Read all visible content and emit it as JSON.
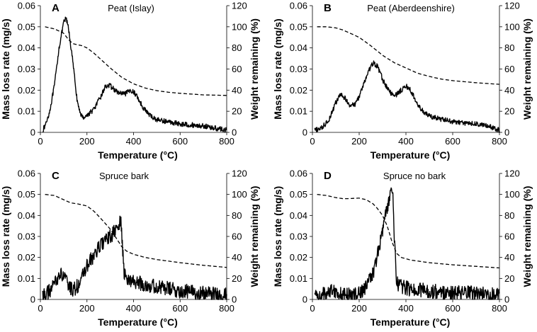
{
  "chart_data": [
    {
      "type": "line",
      "letter": "A",
      "title": "Peat (Islay)",
      "xlabel": "Temperature (°C)",
      "ylabel": "Mass loss rate (mg/s)",
      "y2label": "Weight remaining (%)",
      "xlim": [
        0,
        800
      ],
      "ylim": [
        0,
        0.06
      ],
      "y2lim": [
        0,
        120
      ],
      "xticks": [
        "0",
        "200",
        "400",
        "600",
        "800"
      ],
      "yticks": [
        "0",
        "0.01",
        "0.02",
        "0.03",
        "0.04",
        "0.05",
        "0.06"
      ],
      "y2ticks": [
        "0",
        "20",
        "40",
        "60",
        "80",
        "100",
        "120"
      ],
      "noise": 0.0012,
      "series": [
        {
          "name": "Mass loss rate",
          "axis": "left",
          "style": "solid",
          "x": [
            10,
            20,
            40,
            60,
            80,
            100,
            110,
            120,
            140,
            160,
            180,
            200,
            230,
            260,
            280,
            300,
            330,
            360,
            390,
            410,
            440,
            470,
            500,
            550,
            600,
            650,
            700,
            750,
            800
          ],
          "y": [
            0.001,
            0.003,
            0.01,
            0.022,
            0.04,
            0.052,
            0.054,
            0.05,
            0.033,
            0.013,
            0.007,
            0.008,
            0.011,
            0.017,
            0.022,
            0.022,
            0.019,
            0.018,
            0.02,
            0.018,
            0.012,
            0.008,
            0.006,
            0.005,
            0.004,
            0.0035,
            0.003,
            0.002,
            0.001
          ]
        },
        {
          "name": "Weight remaining",
          "axis": "right",
          "style": "dashed",
          "x": [
            20,
            60,
            100,
            120,
            140,
            160,
            180,
            200,
            230,
            260,
            300,
            350,
            400,
            450,
            500,
            550,
            600,
            700,
            800
          ],
          "y": [
            100,
            98,
            94,
            88,
            84,
            83,
            82,
            80,
            75,
            69,
            61,
            52,
            46,
            42,
            39.5,
            38,
            37,
            35.5,
            35
          ]
        }
      ]
    },
    {
      "type": "line",
      "letter": "B",
      "title": "Peat (Aberdeenshire)",
      "xlabel": "Temperature (°C)",
      "ylabel": "Mass loss rate (mg/s)",
      "y2label": "Weight remaining (%)",
      "xlim": [
        0,
        800
      ],
      "ylim": [
        0,
        0.06
      ],
      "y2lim": [
        0,
        120
      ],
      "xticks": [
        "0",
        "200",
        "400",
        "600",
        "800"
      ],
      "yticks": [
        "0",
        "0.01",
        "0.02",
        "0.03",
        "0.04",
        "0.05",
        "0.06"
      ],
      "y2ticks": [
        "0",
        "20",
        "40",
        "60",
        "80",
        "100",
        "120"
      ],
      "noise": 0.0012,
      "series": [
        {
          "name": "Mass loss rate",
          "axis": "left",
          "style": "solid",
          "x": [
            10,
            40,
            70,
            100,
            120,
            140,
            160,
            180,
            200,
            220,
            240,
            260,
            280,
            300,
            320,
            340,
            360,
            380,
            400,
            420,
            450,
            480,
            520,
            560,
            600,
            650,
            700,
            750,
            800
          ],
          "y": [
            0.001,
            0.002,
            0.006,
            0.014,
            0.018,
            0.016,
            0.013,
            0.013,
            0.017,
            0.023,
            0.029,
            0.033,
            0.031,
            0.025,
            0.021,
            0.018,
            0.018,
            0.02,
            0.022,
            0.02,
            0.013,
            0.009,
            0.007,
            0.006,
            0.005,
            0.0045,
            0.004,
            0.003,
            0.001
          ]
        },
        {
          "name": "Weight remaining",
          "axis": "right",
          "style": "dashed",
          "x": [
            20,
            60,
            100,
            130,
            160,
            200,
            250,
            300,
            350,
            400,
            450,
            500,
            550,
            600,
            700,
            800
          ],
          "y": [
            100,
            100,
            99,
            97,
            94,
            90,
            82,
            73,
            66,
            61,
            56,
            53,
            50.5,
            49,
            47,
            45.5
          ]
        }
      ]
    },
    {
      "type": "line",
      "letter": "C",
      "title": "Spruce bark",
      "xlabel": "Temperature (°C)",
      "ylabel": "Mass loss rate (mg/s)",
      "y2label": "Weight remaining (%)",
      "xlim": [
        0,
        800
      ],
      "ylim": [
        0,
        0.06
      ],
      "y2lim": [
        0,
        120
      ],
      "xticks": [
        "0",
        "200",
        "400",
        "600",
        "800"
      ],
      "yticks": [
        "0",
        "0.01",
        "0.02",
        "0.03",
        "0.04",
        "0.05",
        "0.06"
      ],
      "y2ticks": [
        "0",
        "20",
        "40",
        "60",
        "80",
        "100",
        "120"
      ],
      "noise": 0.0035,
      "series": [
        {
          "name": "Mass loss rate",
          "axis": "left",
          "style": "solid",
          "x": [
            10,
            30,
            50,
            70,
            90,
            110,
            130,
            150,
            170,
            200,
            230,
            260,
            290,
            310,
            330,
            340,
            345,
            350,
            360,
            380,
            420,
            500,
            600,
            700,
            800
          ],
          "y": [
            0.002,
            0.003,
            0.005,
            0.01,
            0.012,
            0.009,
            0.005,
            0.005,
            0.008,
            0.016,
            0.021,
            0.026,
            0.029,
            0.031,
            0.034,
            0.036,
            0.037,
            0.03,
            0.012,
            0.009,
            0.008,
            0.006,
            0.004,
            0.003,
            0.002
          ]
        },
        {
          "name": "Weight remaining",
          "axis": "right",
          "style": "dashed",
          "x": [
            20,
            60,
            100,
            130,
            160,
            200,
            230,
            260,
            300,
            330,
            350,
            370,
            400,
            450,
            500,
            550,
            600,
            700,
            800
          ],
          "y": [
            100,
            99,
            95,
            92,
            91,
            89,
            84,
            77,
            67,
            57,
            50,
            46,
            43,
            40,
            38,
            36.5,
            35,
            32.5,
            30.5
          ]
        }
      ]
    },
    {
      "type": "line",
      "letter": "D",
      "title": "Spruce no bark",
      "xlabel": "Temperature (°C)",
      "ylabel": "Mass loss rate (mg/s)",
      "y2label": "Weight remaining (%)",
      "xlim": [
        0,
        800
      ],
      "ylim": [
        0,
        0.06
      ],
      "y2lim": [
        0,
        120
      ],
      "xticks": [
        "0",
        "200",
        "400",
        "600",
        "800"
      ],
      "yticks": [
        "0",
        "0.01",
        "0.02",
        "0.03",
        "0.04",
        "0.05",
        "0.06"
      ],
      "y2ticks": [
        "0",
        "20",
        "40",
        "60",
        "80",
        "100",
        "120"
      ],
      "noise": 0.0035,
      "series": [
        {
          "name": "Mass loss rate",
          "axis": "left",
          "style": "solid",
          "x": [
            10,
            40,
            70,
            90,
            110,
            150,
            200,
            230,
            260,
            280,
            300,
            320,
            335,
            340,
            345,
            350,
            360,
            380,
            420,
            500,
            600,
            700,
            800
          ],
          "y": [
            0.002,
            0.002,
            0.004,
            0.005,
            0.003,
            0.002,
            0.003,
            0.006,
            0.013,
            0.022,
            0.033,
            0.044,
            0.05,
            0.052,
            0.048,
            0.03,
            0.008,
            0.006,
            0.005,
            0.004,
            0.003,
            0.003,
            0.002
          ]
        },
        {
          "name": "Weight remaining",
          "axis": "right",
          "style": "dashed",
          "x": [
            20,
            60,
            100,
            130,
            150,
            200,
            230,
            260,
            280,
            300,
            320,
            340,
            360,
            380,
            420,
            500,
            600,
            700,
            800
          ],
          "y": [
            100,
            99,
            97,
            96,
            96,
            96.5,
            95,
            91,
            86,
            80,
            70,
            55,
            44,
            40,
            37.5,
            35,
            33,
            31.5,
            30
          ]
        }
      ]
    }
  ]
}
